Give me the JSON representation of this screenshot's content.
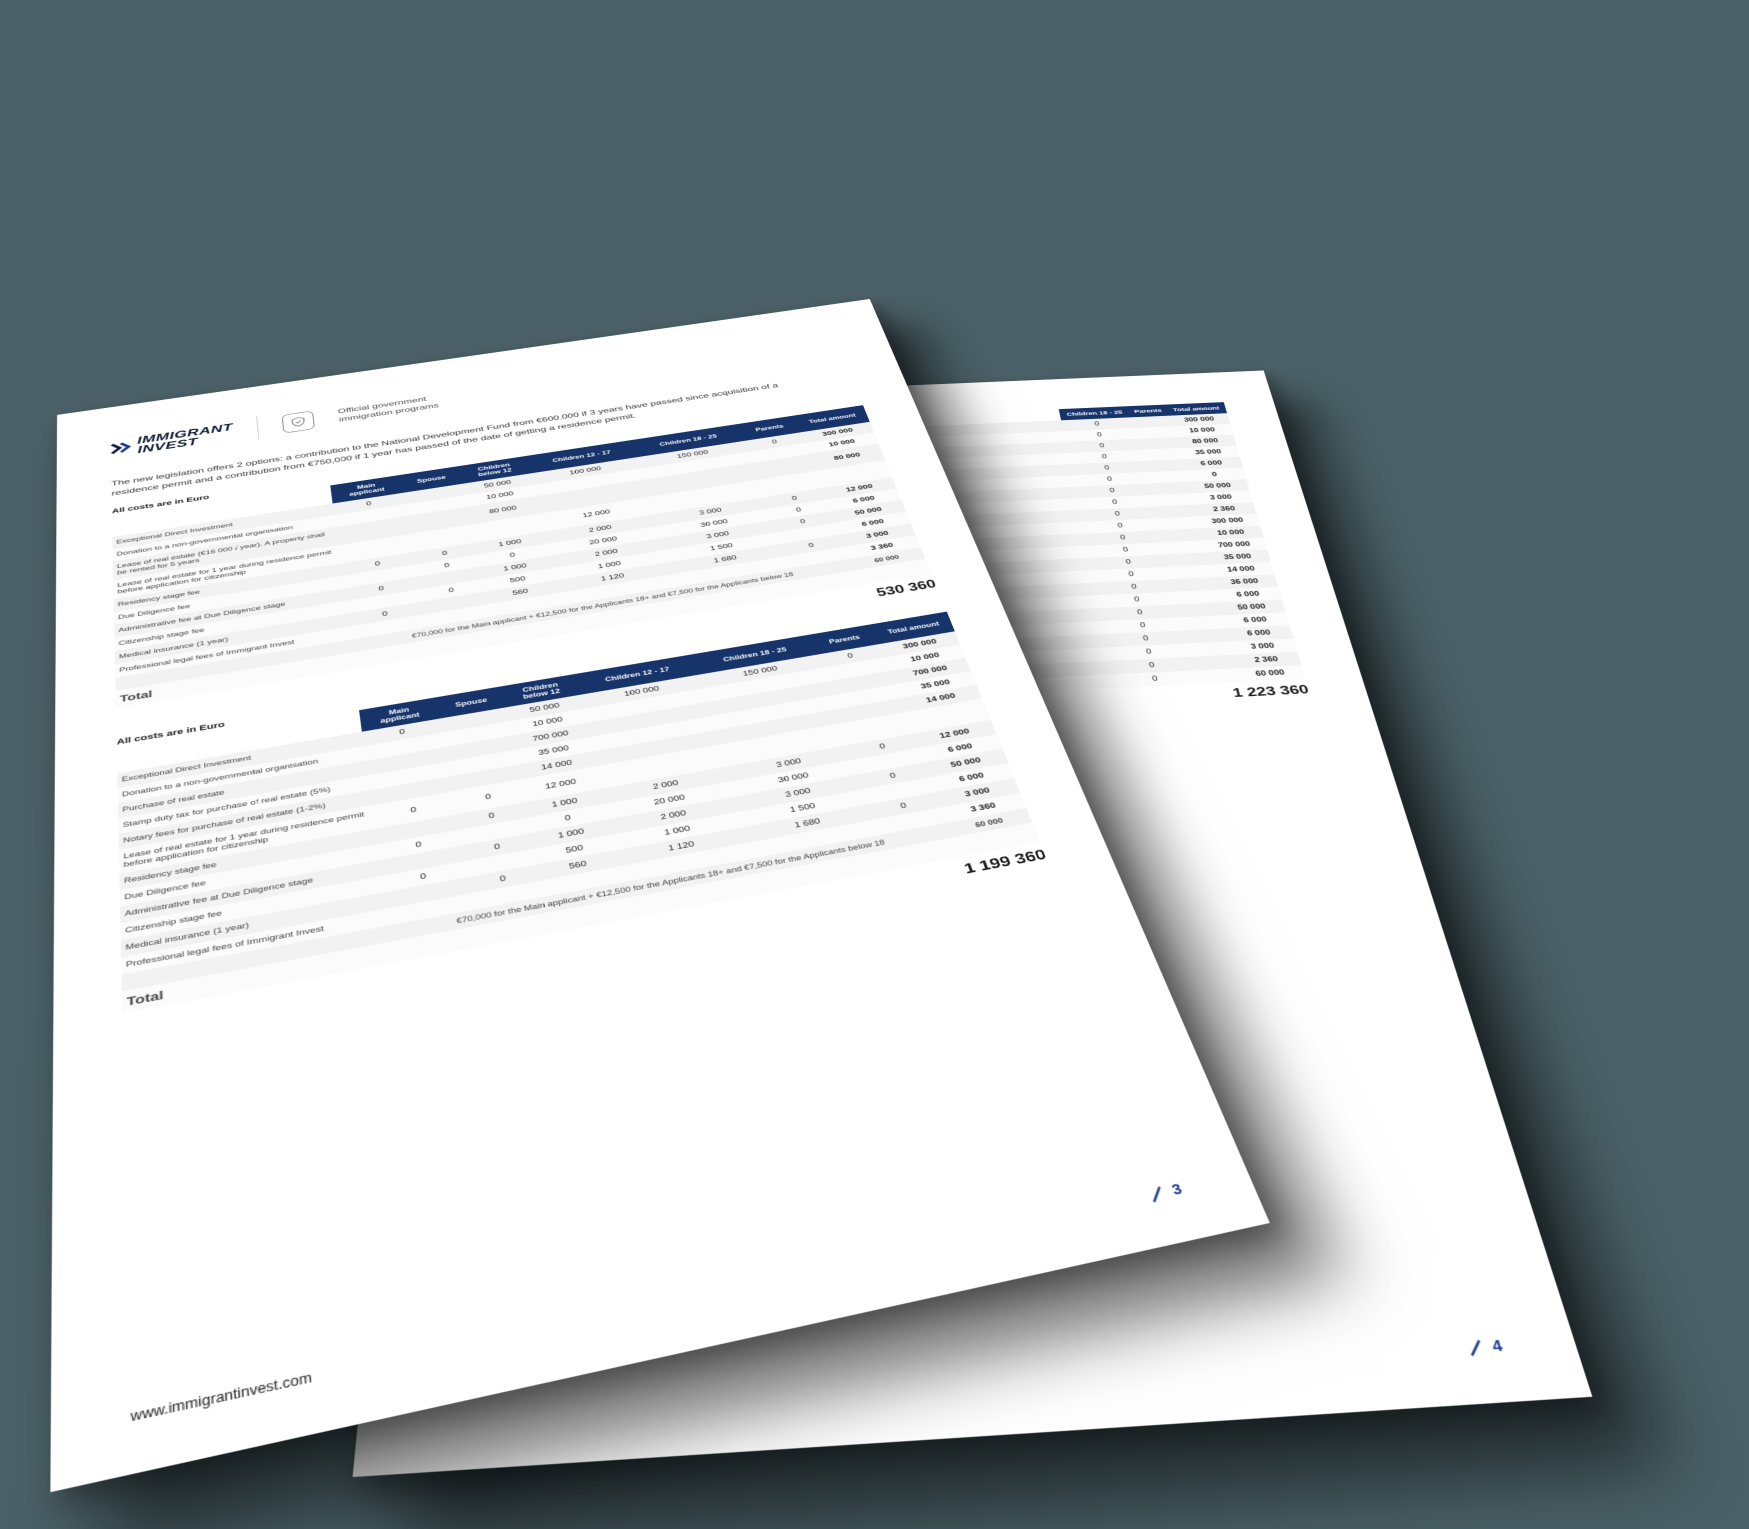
{
  "brand": {
    "line1": "IMMIGRANT",
    "line2": "INVEST"
  },
  "header_subtitle": "Official government\nimmigration programs",
  "intro": "The new legislation offers 2 options: a contribution to the National Development Fund from €600,000 if 3 years have passed since acquisition of a residence permit and a contribution from €750,000 if 1 year has passed of the date of getting a residence permit.",
  "costs_label": "All costs are in Euro",
  "columns": [
    "Main applicant",
    "Spouse",
    "Children below 12",
    "Children 12 - 17",
    "Children 18 - 25",
    "Parents",
    "Total amount"
  ],
  "table1": {
    "rows": [
      {
        "label": "Exceptional Direct Investment",
        "cells": [
          "0",
          "",
          "50 000",
          "100 000",
          "150 000",
          "0",
          "300 000"
        ]
      },
      {
        "label": "Donation to a non-governmental organisation",
        "cells": [
          "",
          "",
          "10 000",
          "",
          "",
          "",
          "10 000"
        ]
      },
      {
        "label": "Lease of real estate (€16 000 / year). A property shall be rented for 5 years",
        "cells": [
          "",
          "",
          "80 000",
          "",
          "",
          "",
          "80 000"
        ]
      },
      {
        "label": "Lease of real estate for 1 year during residence permit before application for citizenship",
        "cells": [
          "",
          "",
          "",
          "12 000",
          "",
          "",
          ""
        ]
      },
      {
        "label": "Residency stage fee",
        "cells": [
          "0",
          "0",
          "1 000",
          "2 000",
          "3 000",
          "0",
          "12 000"
        ]
      },
      {
        "label": "Due Diligence fee",
        "cells": [
          "",
          "0",
          "0",
          "20 000",
          "30 000",
          "0",
          "6 000"
        ]
      },
      {
        "label": "Administrative fee at Due Diligence stage",
        "cells": [
          "0",
          "",
          "1 000",
          "2 000",
          "3 000",
          "0",
          "50 000"
        ]
      },
      {
        "label": "Citizenship stage fee",
        "cells": [
          "",
          "0",
          "500",
          "1 000",
          "1 500",
          "",
          "6 000"
        ]
      },
      {
        "label": "Medical insurance (1 year)",
        "cells": [
          "0",
          "",
          "560",
          "1 120",
          "1 680",
          "0",
          "3 000"
        ]
      },
      {
        "label": "Professional legal fees of Immigrant Invest",
        "cells": [
          "",
          "",
          "",
          "",
          "",
          "",
          "3 360"
        ]
      }
    ],
    "legal_note": "€70,000 for the Main applicant + €12,500 for the Applicants 18+ and €7,500 for the Applicants below 18",
    "legal_total": "60 000",
    "grand_total": "530 360"
  },
  "table2": {
    "rows": [
      {
        "label": "Exceptional Direct Investment",
        "cells": [
          "0",
          "",
          "50 000",
          "100 000",
          "150 000",
          "0",
          "300 000"
        ]
      },
      {
        "label": "Donation to a non-governmental organisation",
        "cells": [
          "",
          "",
          "10 000",
          "",
          "",
          "",
          "10 000"
        ]
      },
      {
        "label": "Purchase of real estate",
        "cells": [
          "",
          "",
          "700 000",
          "",
          "",
          "",
          "700 000"
        ]
      },
      {
        "label": "Stamp duty tax for purchase of real estate (5%)",
        "cells": [
          "",
          "",
          "35 000",
          "",
          "",
          "",
          "35 000"
        ]
      },
      {
        "label": "Notary fees for purchase of real estate (1-2%)",
        "cells": [
          "",
          "",
          "14 000",
          "",
          "",
          "",
          "14 000"
        ]
      },
      {
        "label": "Lease of real estate for 1 year during residence permit before application for citizenship",
        "cells": [
          "0",
          "0",
          "12 000",
          "",
          "",
          "",
          ""
        ]
      },
      {
        "label": "Residency stage fee",
        "cells": [
          "",
          "0",
          "1 000",
          "2 000",
          "3 000",
          "0",
          "12 000"
        ]
      },
      {
        "label": "Due Diligence fee",
        "cells": [
          "0",
          "",
          "0",
          "20 000",
          "30 000",
          "",
          "6 000"
        ]
      },
      {
        "label": "Administrative fee at Due Diligence stage",
        "cells": [
          "",
          "0",
          "1 000",
          "2 000",
          "3 000",
          "0",
          "50 000"
        ]
      },
      {
        "label": "Citizenship stage fee",
        "cells": [
          "0",
          "",
          "500",
          "1 000",
          "1 500",
          "",
          "6 000"
        ]
      },
      {
        "label": "Medical insurance (1 year)",
        "cells": [
          "",
          "0",
          "560",
          "1 120",
          "1 680",
          "0",
          "3 000"
        ]
      },
      {
        "label": "Professional legal fees of Immigrant Invest",
        "cells": [
          "",
          "",
          "",
          "",
          "",
          "",
          "3 360"
        ]
      }
    ],
    "legal_note": "€70,000 for the Main applicant + €12,500 for the Applicants 18+ and €7,500 for the Applicants below 18",
    "legal_total": "60 000",
    "grand_total": "1 199 360"
  },
  "back_page": {
    "grand_total": "1 223 360",
    "page_num": "4"
  },
  "footer_url": "www.immigrantinvest.com",
  "page_num": "3",
  "colors": {
    "header_blue": "#16336a",
    "row_alt": "#f2f2f2",
    "text": "#1b1b1b",
    "background": "#4a6066"
  }
}
